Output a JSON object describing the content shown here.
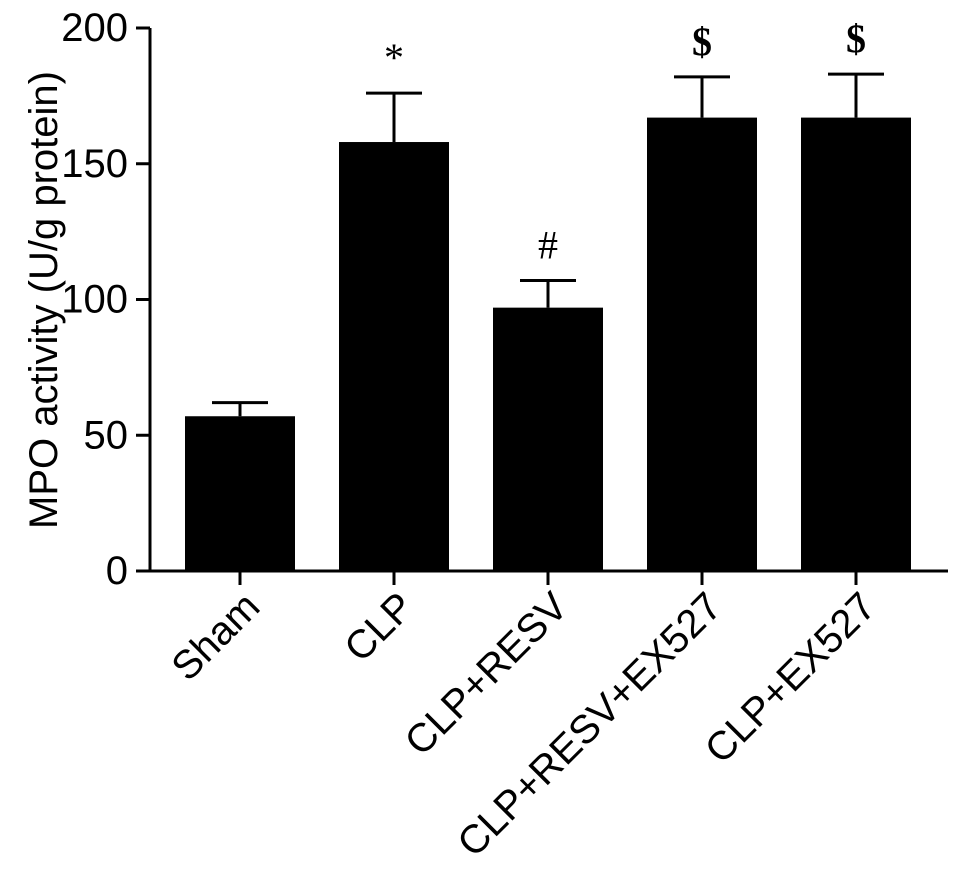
{
  "chart_data": {
    "type": "bar",
    "title": "",
    "xlabel": "",
    "ylabel": "MPO activity (U/g protein)",
    "ylim": [
      0,
      200
    ],
    "yticks": [
      0,
      50,
      100,
      150,
      200
    ],
    "grid": false,
    "legend": "none",
    "categories": [
      "Sham",
      "CLP",
      "CLP+RESV",
      "CLP+RESV+EX527",
      "CLP+EX527"
    ],
    "values": [
      57,
      158,
      97,
      167,
      167
    ],
    "error": [
      5,
      18,
      10,
      15,
      16
    ],
    "annotations": [
      "",
      "*",
      "#",
      "$",
      "$"
    ],
    "bar_color": "#000000"
  }
}
